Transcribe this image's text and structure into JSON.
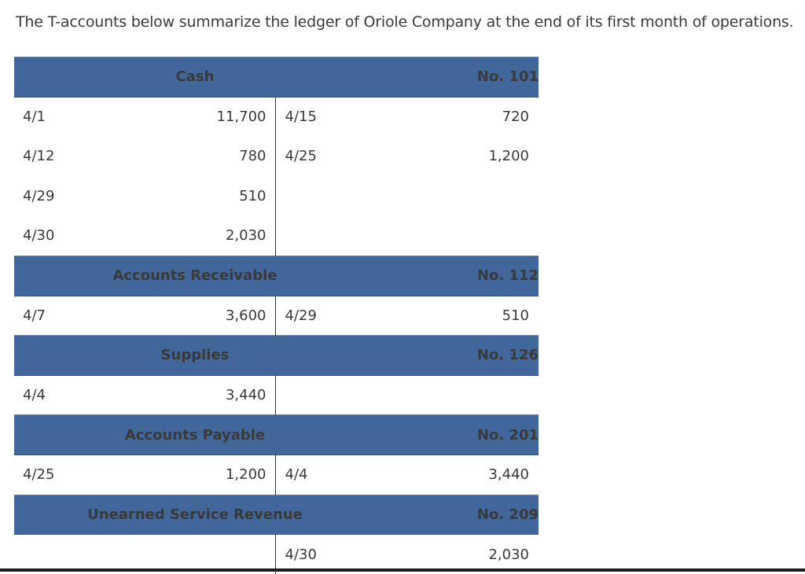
{
  "intro": "The T-accounts below summarize the ledger of Oriole Company at the end of its first month of operations.",
  "accounts": [
    {
      "name": "Cash",
      "number": "No. 101",
      "rows": [
        {
          "debit_date": "4/1",
          "debit_amount": "11,700",
          "credit_date": "4/15",
          "credit_amount": "720"
        },
        {
          "debit_date": "4/12",
          "debit_amount": "780",
          "credit_date": "4/25",
          "credit_amount": "1,200"
        },
        {
          "debit_date": "4/29",
          "debit_amount": "510",
          "credit_date": "",
          "credit_amount": ""
        },
        {
          "debit_date": "4/30",
          "debit_amount": "2,030",
          "credit_date": "",
          "credit_amount": ""
        }
      ]
    },
    {
      "name": "Accounts Receivable",
      "number": "No. 112",
      "rows": [
        {
          "debit_date": "4/7",
          "debit_amount": "3,600",
          "credit_date": "4/29",
          "credit_amount": "510"
        }
      ]
    },
    {
      "name": "Supplies",
      "number": "No. 126",
      "rows": [
        {
          "debit_date": "4/4",
          "debit_amount": "3,440",
          "credit_date": "",
          "credit_amount": ""
        }
      ]
    },
    {
      "name": "Accounts Payable",
      "number": "No. 201",
      "rows": [
        {
          "debit_date": "4/25",
          "debit_amount": "1,200",
          "credit_date": "4/4",
          "credit_amount": "3,440"
        }
      ]
    },
    {
      "name": "Unearned Service Revenue",
      "number": "No. 209",
      "rows": [
        {
          "debit_date": "",
          "debit_amount": "",
          "credit_date": "4/30",
          "credit_amount": "2,030"
        }
      ]
    }
  ]
}
